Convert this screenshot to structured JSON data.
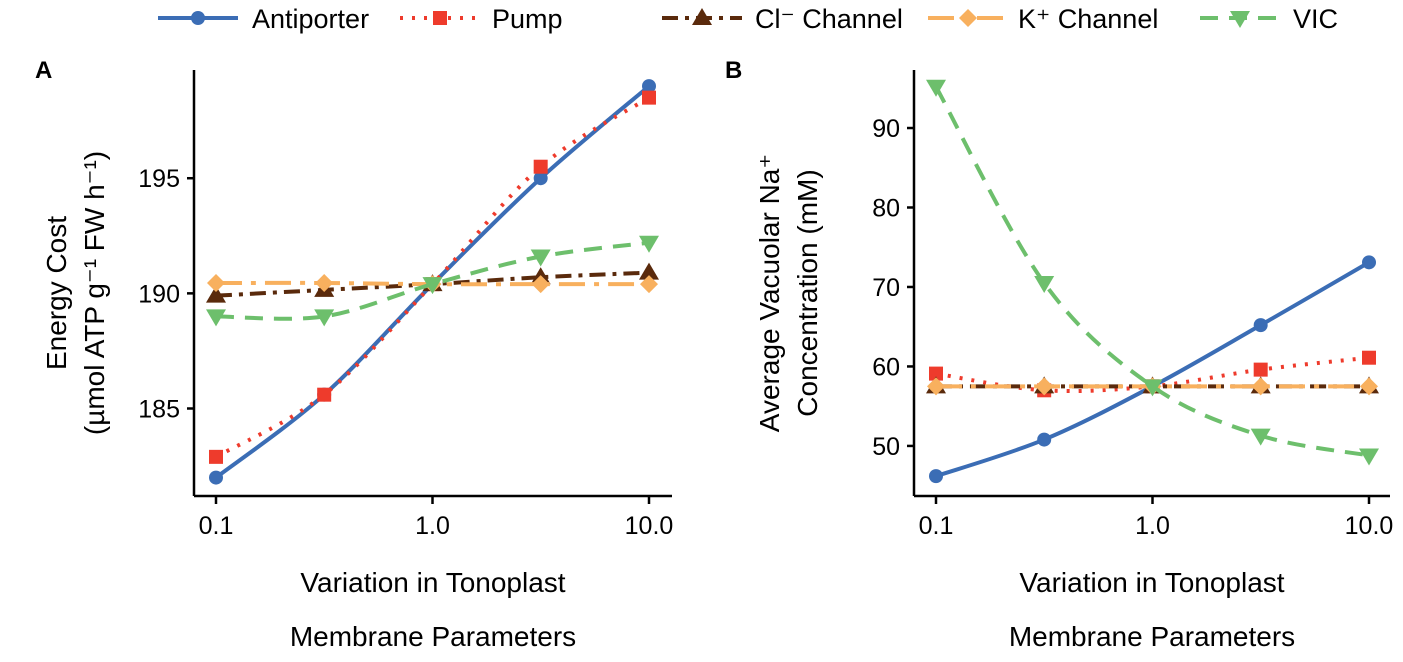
{
  "legend": [
    {
      "name": "Antiporter",
      "color": "#3b6db5",
      "marker": "circle",
      "dash": "solid"
    },
    {
      "name": "Pump",
      "color": "#ee3b2c",
      "marker": "square",
      "dash": "dotted"
    },
    {
      "name": "Cl⁻ Channel",
      "color": "#5a2a0c",
      "marker": "triangle-up",
      "dash": "dotdash"
    },
    {
      "name": "K⁺ Channel",
      "color": "#f8b05e",
      "marker": "diamond",
      "dash": "longdash"
    },
    {
      "name": "VIC",
      "color": "#6dbf6c",
      "marker": "triangle-down",
      "dash": "dashed"
    }
  ],
  "chart_data": [
    {
      "type": "line",
      "panel_label": "A",
      "xlabel": [
        "Variation in Tonoplast",
        "Membrane Parameters"
      ],
      "ylabel": [
        "Energy Cost",
        "(µmol ATP g⁻¹ FW h⁻¹)"
      ],
      "xscale": "log",
      "x": [
        0.1,
        0.316,
        1.0,
        3.16,
        10.0
      ],
      "xticks": [
        0.1,
        1.0,
        10.0
      ],
      "xtick_labels": [
        "0.1",
        "1.0",
        "10.0"
      ],
      "yticks": [
        185,
        190,
        195
      ],
      "ytick_labels": [
        "185",
        "190",
        "195"
      ],
      "ylim": [
        181.2,
        199.7
      ],
      "series": [
        {
          "name": "Antiporter",
          "values": [
            182.0,
            185.6,
            190.4,
            195.0,
            199.0
          ]
        },
        {
          "name": "Pump",
          "values": [
            182.9,
            185.6,
            190.4,
            195.5,
            198.5
          ]
        },
        {
          "name": "Cl⁻ Channel",
          "values": [
            189.9,
            190.15,
            190.4,
            190.7,
            190.9
          ]
        },
        {
          "name": "K⁺ Channel",
          "values": [
            190.45,
            190.45,
            190.4,
            190.4,
            190.4
          ]
        },
        {
          "name": "VIC",
          "values": [
            189.0,
            189.0,
            190.4,
            191.6,
            192.2
          ]
        }
      ]
    },
    {
      "type": "line",
      "panel_label": "B",
      "xlabel": [
        "Variation in Tonoplast",
        "Membrane Parameters"
      ],
      "ylabel": [
        "Average Vacuolar Na⁺",
        "Concentration (mM)"
      ],
      "xscale": "log",
      "x": [
        0.1,
        0.316,
        1.0,
        3.16,
        10.0
      ],
      "xticks": [
        0.1,
        1.0,
        10.0
      ],
      "xtick_labels": [
        "0.1",
        "1.0",
        "10.0"
      ],
      "yticks": [
        50,
        60,
        70,
        80,
        90
      ],
      "ytick_labels": [
        "50",
        "60",
        "70",
        "80",
        "90"
      ],
      "ylim": [
        43.7,
        97.3
      ],
      "series": [
        {
          "name": "Antiporter",
          "values": [
            46.2,
            50.8,
            57.5,
            65.2,
            73.1
          ]
        },
        {
          "name": "Pump",
          "values": [
            59.1,
            57.0,
            57.5,
            59.6,
            61.1
          ]
        },
        {
          "name": "Cl⁻ Channel",
          "values": [
            57.5,
            57.5,
            57.5,
            57.5,
            57.5
          ]
        },
        {
          "name": "K⁺ Channel",
          "values": [
            57.5,
            57.5,
            57.5,
            57.5,
            57.5
          ]
        },
        {
          "name": "VIC",
          "values": [
            95.2,
            70.5,
            57.5,
            51.3,
            48.8
          ]
        }
      ]
    }
  ]
}
